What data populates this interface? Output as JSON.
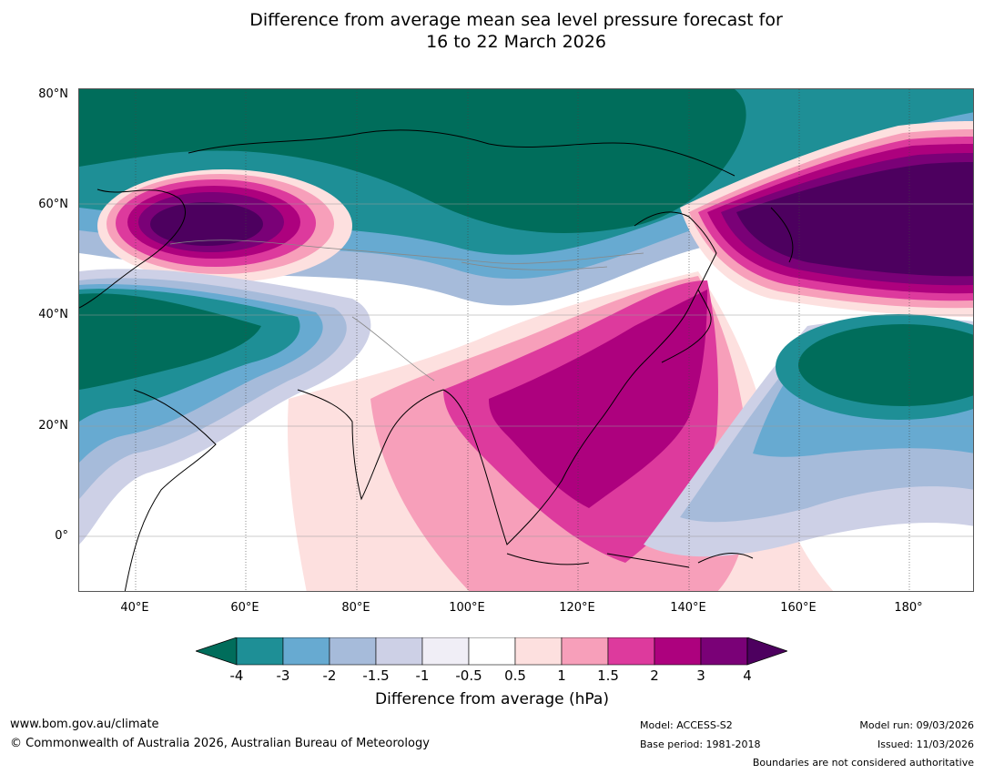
{
  "title": {
    "line1": "Difference from average mean sea level pressure forecast for",
    "line2": "16 to 22 March 2026"
  },
  "map": {
    "lat_labels": [
      "80°N",
      "60°N",
      "40°N",
      "20°N",
      "0°"
    ],
    "lon_labels": [
      "40°E",
      "60°E",
      "80°E",
      "100°E",
      "120°E",
      "140°E",
      "160°E",
      "180°"
    ]
  },
  "colorbar": {
    "ticks": [
      "-4",
      "-3",
      "-2",
      "-1.5",
      "-1",
      "-0.5",
      "0.5",
      "1",
      "1.5",
      "2",
      "3",
      "4"
    ],
    "colors": [
      "#006d5b",
      "#1e8f96",
      "#67aad1",
      "#a6bbda",
      "#cdd0e6",
      "#f0eef6",
      "#ffffff",
      "#fde0df",
      "#f79fba",
      "#dd3a9d",
      "#ad017e",
      "#7a0177",
      "#4d005f"
    ],
    "title": "Difference from average (hPa)"
  },
  "footer": {
    "url": "www.bom.gov.au/climate",
    "copyright": "© Commonwealth of Australia 2026, Australian Bureau of Meteorology",
    "model": "Model: ACCESS-S2",
    "base_period": "Base period: 1981-2018",
    "model_run": "Model run: 09/03/2026",
    "issued": "Issued: 11/03/2026",
    "disclaimer": "Boundaries are not considered authoritative"
  }
}
